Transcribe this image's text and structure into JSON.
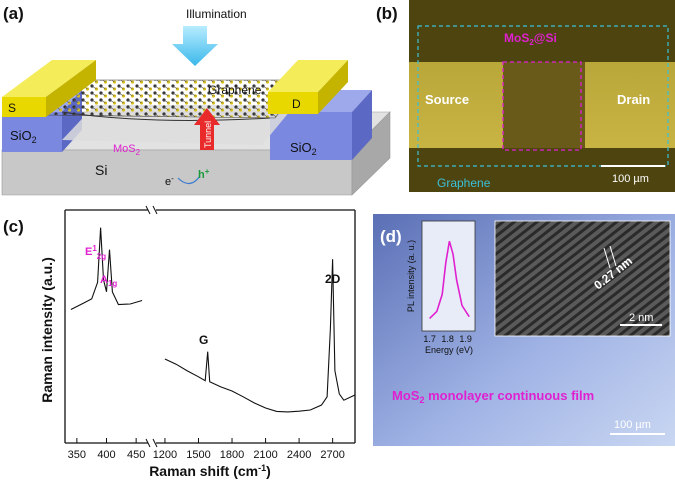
{
  "panels": {
    "a": {
      "label": "(a)",
      "illumination": "Illumination",
      "graphene": "Graphene",
      "electrode_left": "S",
      "electrode_right": "D",
      "sio2_left": "SiO",
      "sio2_left_sub": "2",
      "sio2_right": "SiO",
      "sio2_right_sub": "2",
      "substrate": "Si",
      "mos2": "MoS",
      "mos2_sub": "2",
      "tunnel": "Tunnel",
      "electron": "e",
      "electron_sup": "-",
      "hole": "h",
      "hole_sup": "+"
    },
    "b": {
      "label": "(b)",
      "mos2_si": "MoS",
      "mos2_si_sub": "2",
      "mos2_si_tail": "@Si",
      "source": "Source",
      "drain": "Drain",
      "graphene": "Graphene",
      "scalebar": "100 µm"
    },
    "c": {
      "label": "(c)",
      "ylabel": "Raman intensity (a.u.)",
      "xlabel_main": "Raman shift (cm",
      "xlabel_sup": "-1",
      "xlabel_tail": ")",
      "peak_e": "E",
      "peak_e_sup": "1",
      "peak_e_sub": "2g",
      "peak_a": "A",
      "peak_a_sub": "1g",
      "peak_g": "G",
      "peak_2d": "2D"
    },
    "d": {
      "label": "(d)",
      "inset_ylabel": "PL intensity (a. u.)",
      "inset_xlabel": "Energy (eV)",
      "lattice": "0.27 nm",
      "inset_scalebar": "2 nm",
      "film_label_pre": "MoS",
      "film_label_sub": "2",
      "film_label_post": " monolayer continuous film",
      "scalebar": "100 µm"
    }
  },
  "colors": {
    "accent_magenta": "#e020d0",
    "gold": "#e8d800",
    "sio2_blue": "#7a88e0",
    "si_gray": "#c8c8c8",
    "graphene_cyan": "#5ab0d0"
  },
  "chart_data": [
    {
      "type": "line",
      "title": "",
      "xlabel": "Raman shift (cm-1)",
      "ylabel": "Raman intensity (a.u.)",
      "x_ticks": [
        "350",
        "400",
        "450",
        "1200",
        "1500",
        "1800",
        "2100",
        "2400",
        "2700"
      ],
      "segments": [
        {
          "name": "",
          "x": [
            340,
            360,
            375,
            385,
            390,
            395,
            400,
            405,
            410,
            420,
            440,
            460
          ],
          "y": [
            0.58,
            0.6,
            0.62,
            0.7,
            0.95,
            0.72,
            0.66,
            0.84,
            0.65,
            0.6,
            0.61,
            0.62
          ]
        },
        {
          "name": "",
          "x": [
            1200,
            1300,
            1400,
            1500,
            1560,
            1582,
            1600,
            1700,
            1800,
            1900,
            2000,
            2100,
            2200,
            2300,
            2400,
            2500,
            2600,
            2650,
            2680,
            2700,
            2720,
            2760,
            2800,
            2900
          ],
          "y": [
            0.36,
            0.33,
            0.3,
            0.28,
            0.27,
            0.4,
            0.26,
            0.23,
            0.21,
            0.19,
            0.17,
            0.15,
            0.13,
            0.12,
            0.12,
            0.13,
            0.16,
            0.2,
            0.5,
            0.8,
            0.3,
            0.2,
            0.18,
            0.2
          ]
        }
      ],
      "peaks": [
        "E12g",
        "A1g",
        "G",
        "2D"
      ]
    },
    {
      "type": "line",
      "title": "",
      "xlabel": "Energy (eV)",
      "ylabel": "PL intensity (a. u.)",
      "x_ticks": [
        "1.7",
        "1.8",
        "1.9"
      ],
      "series": [
        {
          "name": "",
          "x": [
            1.7,
            1.74,
            1.77,
            1.79,
            1.81,
            1.83,
            1.85,
            1.88,
            1.92
          ],
          "y": [
            0.1,
            0.18,
            0.38,
            0.75,
            1.0,
            0.85,
            0.55,
            0.25,
            0.12
          ]
        }
      ]
    }
  ]
}
